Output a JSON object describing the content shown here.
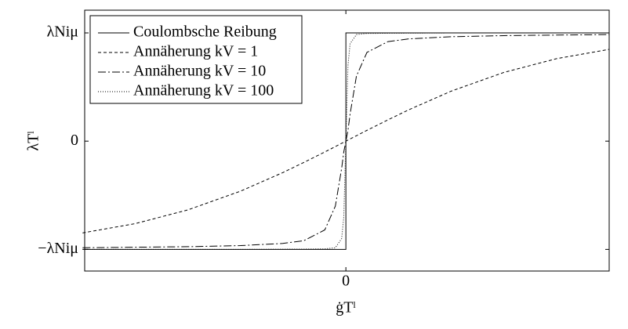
{
  "chart_data": {
    "type": "line",
    "x_label": "ġTˡ",
    "y_label": "λTˡ",
    "xlim": [
      -1.24,
      1.25
    ],
    "xticks": [
      0
    ],
    "ylim": [
      -1.2,
      1.21
    ],
    "yticks": [
      {
        "value": -1,
        "label": "−λNiμ"
      },
      0,
      {
        "value": 1,
        "label": "λNiμ"
      }
    ],
    "x": [
      -1.25,
      -1,
      -0.75,
      -0.5,
      -0.3,
      -0.2,
      -0.1,
      -0.05,
      -0.02,
      -0.01,
      0,
      0.01,
      0.02,
      0.05,
      0.1,
      0.2,
      0.3,
      0.5,
      0.75,
      1,
      1.25
    ],
    "legend": "upper left",
    "series": [
      {
        "name": "Coulombsche Reibung",
        "color": "#000000",
        "dash": "none",
        "x": [
          -1.25,
          0,
          0,
          1.25
        ],
        "values": [
          -1,
          -1,
          1,
          1
        ]
      },
      {
        "name": "Annäherung kV = 1",
        "color": "#000000",
        "dash": "4,3",
        "values": [
          -0.848,
          -0.762,
          -0.635,
          -0.462,
          -0.291,
          -0.197,
          -0.1,
          -0.05,
          -0.02,
          -0.01,
          0,
          0.01,
          0.02,
          0.05,
          0.1,
          0.197,
          0.291,
          0.462,
          0.635,
          0.762,
          0.848
        ]
      },
      {
        "name": "Annäherung kV = 10",
        "color": "#000000",
        "dash": "10,3,2,3",
        "values": [
          -0.985,
          -0.98,
          -0.975,
          -0.965,
          -0.945,
          -0.92,
          -0.82,
          -0.6,
          -0.25,
          -0.1,
          0,
          0.1,
          0.25,
          0.6,
          0.82,
          0.92,
          0.945,
          0.965,
          0.975,
          0.98,
          0.985
        ]
      },
      {
        "name": "Annäherung kV = 100",
        "color": "#000000",
        "dash": "1,2",
        "values": [
          -1,
          -1,
          -1,
          -1,
          -0.998,
          -0.997,
          -0.995,
          -0.985,
          -0.9,
          -0.7,
          0,
          0.7,
          0.9,
          0.985,
          0.995,
          0.997,
          0.998,
          1,
          1,
          1,
          1
        ]
      }
    ]
  }
}
